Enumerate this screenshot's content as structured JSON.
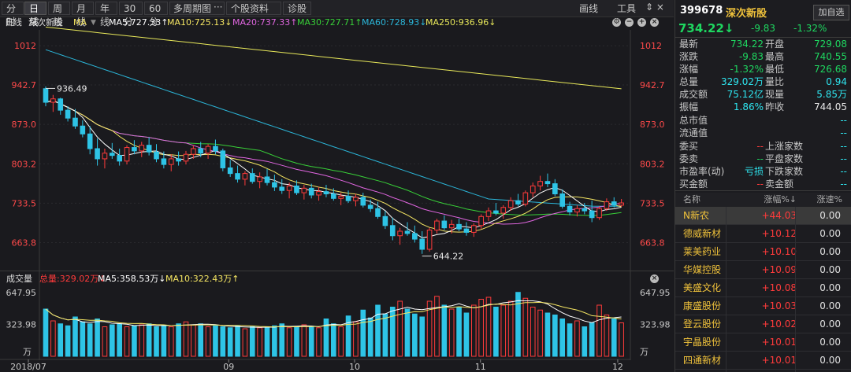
{
  "toolbar": {
    "tabs": [
      "分时",
      "日线",
      "周线",
      "月线",
      "年线",
      "30分",
      "60分",
      "多周期图",
      "个股资料",
      "诊股"
    ],
    "active": 1,
    "draw_label": "画线",
    "tools_label": "工具",
    "dots": "···"
  },
  "info": {
    "period": "日线",
    "name": "深次新股",
    "ma_menu": "MA",
    "ma5": "MA5:727.33↑",
    "ma10": "MA10:725.13↓",
    "ma20": "MA20:737.33↑",
    "ma30": "MA30:727.71↑",
    "ma60": "MA60:728.93↓",
    "ma250": "MA250:936.96↓"
  },
  "price_axis": [
    "1012",
    "942.7",
    "873.0",
    "803.2",
    "733.5",
    "663.8"
  ],
  "annotations": {
    "high": "936.49",
    "low": "644.22"
  },
  "volume": {
    "title": "成交量",
    "total": "总量:329.02万↓",
    "ma5": "MA5:358.53万↓",
    "ma10": "MA10:322.43万↑",
    "axis_top": "647.95",
    "axis_mid": "323.98",
    "unit": "万"
  },
  "date_axis": [
    "2018/07",
    "09",
    "10",
    "11",
    "12"
  ],
  "colors": {
    "up": "#ff3b3b",
    "down": "#2ec4e6",
    "ma5": "#ffffff",
    "ma10": "#f5e663",
    "ma20": "#e066e0",
    "ma30": "#38d038",
    "ma60": "#2bb6d9",
    "ma250": "#e8e85a"
  },
  "quote": {
    "code": "399678",
    "name": "深次新股",
    "add_button": "加自选",
    "price": "734.22",
    "arrow": "↓",
    "change": "-9.83",
    "change_pct": "-1.32%",
    "rows": [
      [
        "最新",
        "734.22",
        "g",
        "开盘",
        "729.08",
        "g"
      ],
      [
        "涨跌",
        "-9.83",
        "g",
        "最高",
        "740.55",
        "g"
      ],
      [
        "涨幅",
        "-1.32%",
        "g",
        "最低",
        "726.68",
        "g"
      ],
      [
        "总量",
        "329.02万",
        "c",
        "量比",
        "0.94",
        "c"
      ],
      [
        "成交额",
        "75.12亿",
        "c",
        "现量",
        "5.85万",
        "c"
      ],
      [
        "振幅",
        "1.86%",
        "c",
        "昨收",
        "744.05",
        "w"
      ],
      [
        "总市值",
        "",
        "w",
        "",
        "--",
        "c"
      ],
      [
        "流通值",
        "",
        "w",
        "",
        "--",
        "c"
      ],
      [
        "委买",
        "--",
        "r",
        "上涨家数",
        "--",
        "c"
      ],
      [
        "委卖",
        "--",
        "g",
        "平盘家数",
        "--",
        "c"
      ],
      [
        "市盈率(动)",
        "亏损",
        "c",
        "下跌家数",
        "--",
        "c"
      ],
      [
        "买金额",
        "--",
        "r",
        "卖金额",
        "--",
        "c"
      ]
    ]
  },
  "list": {
    "headers": [
      "名称",
      "涨幅%↓",
      "涨速%"
    ],
    "rows": [
      [
        "N新农",
        "+44.03",
        "0.00"
      ],
      [
        "德威新材",
        "+10.12",
        "0.00"
      ],
      [
        "莱美药业",
        "+10.10",
        "0.00"
      ],
      [
        "华媒控股",
        "+10.09",
        "0.00"
      ],
      [
        "美盛文化",
        "+10.08",
        "0.00"
      ],
      [
        "康盛股份",
        "+10.03",
        "0.00"
      ],
      [
        "登云股份",
        "+10.02",
        "0.00"
      ],
      [
        "宇晶股份",
        "+10.01",
        "0.00"
      ],
      [
        "四通新材",
        "+10.01",
        "0.00"
      ]
    ]
  },
  "chart_data": {
    "type": "candlestick",
    "y_range": [
      620,
      1040
    ],
    "ohlc": [
      [
        936,
        940,
        905,
        912
      ],
      [
        912,
        925,
        895,
        918
      ],
      [
        918,
        920,
        890,
        898
      ],
      [
        898,
        905,
        878,
        884
      ],
      [
        884,
        900,
        865,
        870
      ],
      [
        870,
        880,
        850,
        856
      ],
      [
        856,
        870,
        820,
        830
      ],
      [
        830,
        848,
        800,
        812
      ],
      [
        812,
        830,
        795,
        822
      ],
      [
        822,
        840,
        812,
        818
      ],
      [
        818,
        830,
        800,
        808
      ],
      [
        808,
        836,
        802,
        832
      ],
      [
        832,
        845,
        820,
        826
      ],
      [
        826,
        842,
        815,
        836
      ],
      [
        836,
        850,
        818,
        824
      ],
      [
        824,
        838,
        806,
        812
      ],
      [
        812,
        825,
        795,
        802
      ],
      [
        802,
        820,
        790,
        812
      ],
      [
        812,
        825,
        800,
        808
      ],
      [
        808,
        826,
        802,
        820
      ],
      [
        820,
        836,
        812,
        830
      ],
      [
        830,
        842,
        815,
        822
      ],
      [
        822,
        838,
        812,
        834
      ],
      [
        834,
        846,
        820,
        826
      ],
      [
        826,
        830,
        790,
        796
      ],
      [
        796,
        810,
        780,
        786
      ],
      [
        786,
        800,
        770,
        776
      ],
      [
        776,
        790,
        765,
        786
      ],
      [
        786,
        795,
        768,
        772
      ],
      [
        772,
        788,
        760,
        780
      ],
      [
        780,
        794,
        765,
        770
      ],
      [
        770,
        784,
        755,
        762
      ],
      [
        762,
        776,
        750,
        756
      ],
      [
        756,
        770,
        742,
        764
      ],
      [
        764,
        774,
        748,
        752
      ],
      [
        752,
        766,
        740,
        760
      ],
      [
        760,
        768,
        742,
        748
      ],
      [
        748,
        762,
        738,
        754
      ],
      [
        754,
        766,
        744,
        750
      ],
      [
        750,
        760,
        738,
        742
      ],
      [
        742,
        752,
        730,
        746
      ],
      [
        746,
        756,
        734,
        738
      ],
      [
        738,
        750,
        728,
        744
      ],
      [
        744,
        752,
        726,
        730
      ],
      [
        730,
        740,
        718,
        724
      ],
      [
        724,
        736,
        706,
        710
      ],
      [
        710,
        720,
        688,
        694
      ],
      [
        694,
        708,
        668,
        676
      ],
      [
        676,
        690,
        660,
        684
      ],
      [
        684,
        700,
        676,
        680
      ],
      [
        680,
        694,
        664,
        670
      ],
      [
        670,
        684,
        644,
        652
      ],
      [
        652,
        690,
        648,
        686
      ],
      [
        686,
        706,
        680,
        702
      ],
      [
        702,
        712,
        686,
        690
      ],
      [
        690,
        704,
        680,
        696
      ],
      [
        696,
        706,
        684,
        688
      ],
      [
        688,
        700,
        676,
        682
      ],
      [
        682,
        698,
        674,
        694
      ],
      [
        694,
        714,
        688,
        710
      ],
      [
        710,
        726,
        702,
        720
      ],
      [
        720,
        734,
        712,
        716
      ],
      [
        716,
        730,
        706,
        726
      ],
      [
        726,
        744,
        720,
        738
      ],
      [
        738,
        750,
        728,
        732
      ],
      [
        732,
        756,
        728,
        752
      ],
      [
        752,
        770,
        744,
        764
      ],
      [
        764,
        782,
        756,
        772
      ],
      [
        772,
        786,
        762,
        768
      ],
      [
        768,
        776,
        746,
        750
      ],
      [
        750,
        758,
        724,
        728
      ],
      [
        728,
        736,
        712,
        718
      ],
      [
        718,
        730,
        710,
        724
      ],
      [
        724,
        734,
        714,
        720
      ],
      [
        720,
        738,
        700,
        708
      ],
      [
        708,
        728,
        704,
        724
      ],
      [
        724,
        742,
        720,
        736
      ],
      [
        736,
        744,
        726,
        730
      ],
      [
        730,
        741,
        727,
        734
      ]
    ],
    "volume": [
      480,
      360,
      330,
      310,
      400,
      350,
      330,
      380,
      300,
      320,
      330,
      300,
      310,
      320,
      330,
      300,
      310,
      300,
      330,
      350,
      320,
      330,
      300,
      310,
      300,
      290,
      310,
      280,
      300,
      290,
      300,
      310,
      330,
      290,
      300,
      320,
      300,
      290,
      380,
      330,
      300,
      410,
      350,
      470,
      390,
      520,
      430,
      500,
      560,
      480,
      430,
      400,
      560,
      610,
      520,
      480,
      500,
      440,
      520,
      580,
      600,
      500,
      520,
      560,
      650,
      590,
      500,
      470,
      440,
      420,
      380,
      330,
      360,
      300,
      340,
      520,
      420,
      380,
      340
    ]
  }
}
